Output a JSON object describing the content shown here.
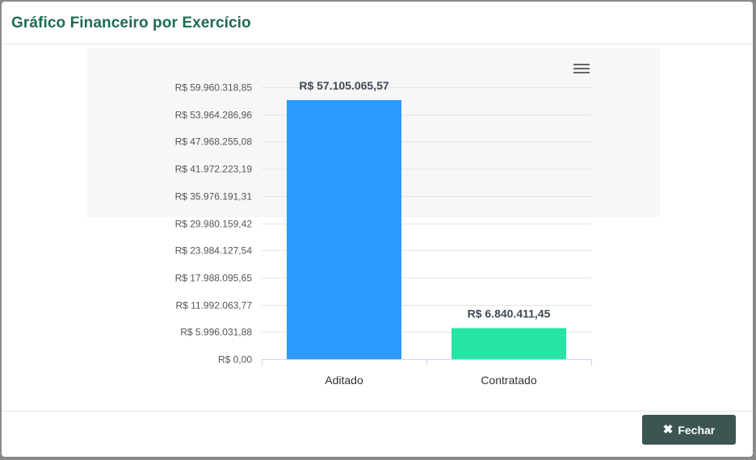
{
  "modal": {
    "title": "Gráfico Financeiro por Exercício",
    "close_label": "Fechar",
    "close_icon": "times-icon",
    "menu_icon": "hamburger-icon"
  },
  "chart_data": {
    "type": "bar",
    "categories": [
      "Aditado",
      "Contratado"
    ],
    "values": [
      57105065.57,
      6840411.45
    ],
    "data_labels": [
      "R$ 57.105.065,57",
      "R$ 6.840.411,45"
    ],
    "colors": [
      "#2b9bff",
      "#27e4a4"
    ],
    "ylim": [
      0,
      59960318.85
    ],
    "yticks": [
      0,
      5996031.88,
      11992063.77,
      17988095.65,
      23984127.54,
      29980159.42,
      35976191.31,
      41972223.19,
      47968255.08,
      53964286.96,
      59960318.85
    ],
    "ytick_labels": [
      "R$ 0,00",
      "R$ 5.996.031,88",
      "R$ 11.992.063,77",
      "R$ 17.988.095,65",
      "R$ 23.984.127,54",
      "R$ 29.980.159,42",
      "R$ 35.976.191,31",
      "R$ 41.972.223,19",
      "R$ 47.968.255,08",
      "R$ 53.964.286,96",
      "R$ 59.960.318,85"
    ],
    "title": "",
    "xlabel": "",
    "ylabel": "",
    "grid": true
  }
}
